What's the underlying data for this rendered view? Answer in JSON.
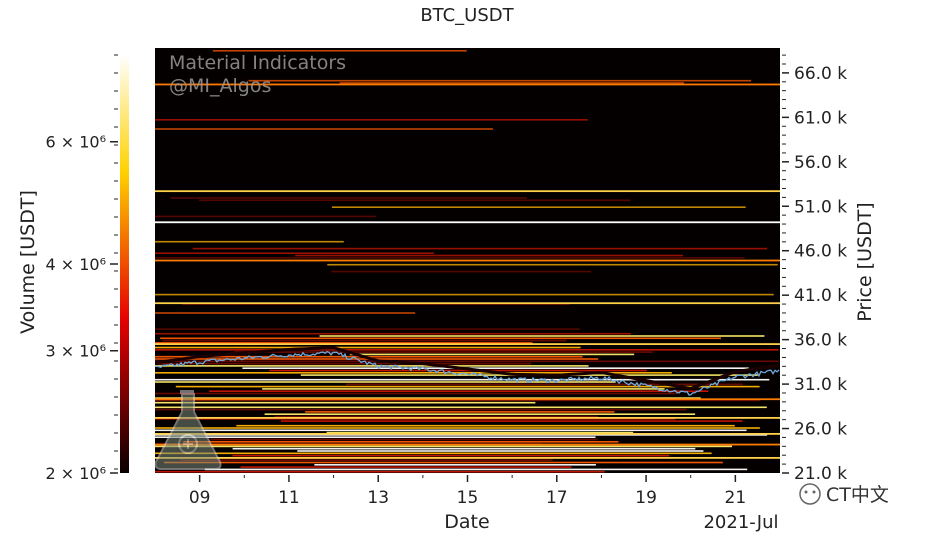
{
  "chart_data": {
    "type": "heatmap",
    "title": "BTC_USDT",
    "xlabel": "Date",
    "ylabel": "Price [USDT]",
    "colorbar_label": "Volume [USDT]",
    "x_ticks": [
      "09",
      "11",
      "13",
      "15",
      "17",
      "19",
      "21"
    ],
    "x_sublabel": "2021-Jul",
    "x_range": [
      "2021-07-08",
      "2021-07-22"
    ],
    "y_ticks": [
      "21.0 k",
      "26.0 k",
      "31.0 k",
      "36.0 k",
      "41.0 k",
      "46.0 k",
      "51.0 k",
      "56.0 k",
      "61.0 k",
      "66.0 k"
    ],
    "y_tick_values": [
      21000,
      26000,
      31000,
      36000,
      41000,
      46000,
      51000,
      56000,
      61000,
      66000
    ],
    "ylim": [
      21000,
      68800
    ],
    "colorbar_ticks": [
      "2 × 10⁶",
      "3 × 10⁶",
      "4 × 10⁶",
      "6 × 10⁶"
    ],
    "colorbar_tick_values": [
      2000000,
      3000000,
      4000000,
      6000000
    ],
    "colorbar_range": [
      2000000,
      8000000
    ],
    "colorbar_scale": "log",
    "colormap": "hot",
    "watermark_line1": "Material Indicators",
    "watermark_line2": "@MI_Algos",
    "price_series": {
      "name": "",
      "color": "#6fa8dc",
      "dates": [
        "2021-07-08",
        "2021-07-09",
        "2021-07-10",
        "2021-07-11",
        "2021-07-12",
        "2021-07-13",
        "2021-07-14",
        "2021-07-15",
        "2021-07-16",
        "2021-07-17",
        "2021-07-18",
        "2021-07-19",
        "2021-07-20",
        "2021-07-21",
        "2021-07-22"
      ],
      "values": [
        32800,
        33500,
        33900,
        34300,
        34500,
        33000,
        32700,
        32100,
        31500,
        31400,
        31700,
        30800,
        29900,
        31800,
        32500
      ]
    }
  },
  "watermark_badge": "CT中文",
  "colors": {
    "background": "#000000",
    "accent_white": "#ffffff"
  }
}
